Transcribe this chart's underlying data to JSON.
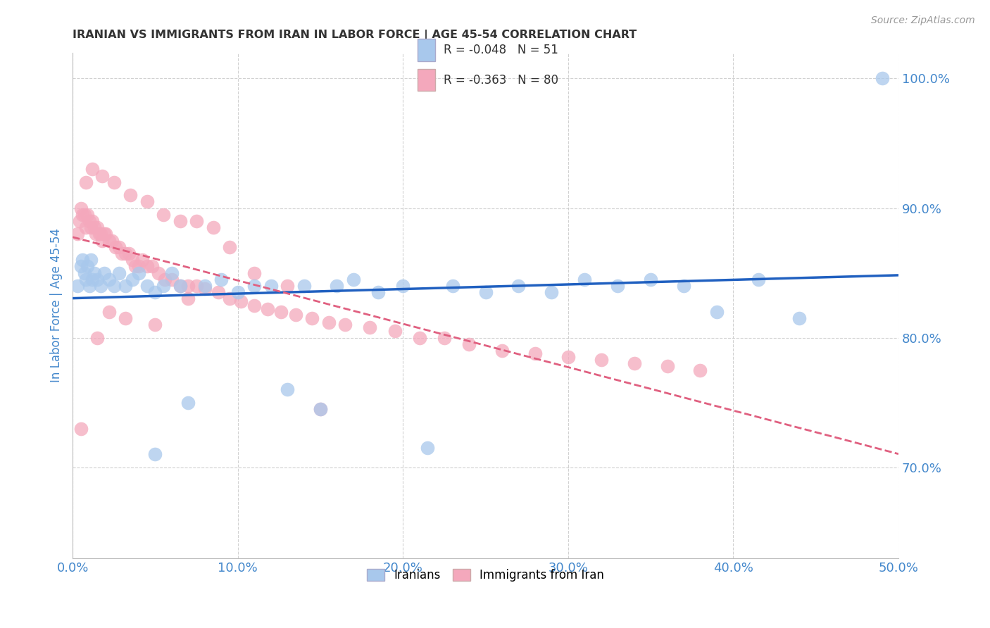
{
  "title": "IRANIAN VS IMMIGRANTS FROM IRAN IN LABOR FORCE | AGE 45-54 CORRELATION CHART",
  "source": "Source: ZipAtlas.com",
  "ylabel": "In Labor Force | Age 45-54",
  "xlim": [
    0.0,
    0.5
  ],
  "ylim": [
    0.63,
    1.02
  ],
  "ytick_labels": [
    "70.0%",
    "80.0%",
    "90.0%",
    "100.0%"
  ],
  "ytick_values": [
    0.7,
    0.8,
    0.9,
    1.0
  ],
  "xtick_labels": [
    "0.0%",
    "10.0%",
    "20.0%",
    "30.0%",
    "40.0%",
    "50.0%"
  ],
  "xtick_values": [
    0.0,
    0.1,
    0.2,
    0.3,
    0.4,
    0.5
  ],
  "legend_label1": "Iranians",
  "legend_label2": "Immigrants from Iran",
  "R1": -0.048,
  "N1": 51,
  "R2": -0.363,
  "N2": 80,
  "color1": "#A8C8EC",
  "color2": "#F4A8BC",
  "trendline1_color": "#2060C0",
  "trendline2_color": "#E06080",
  "background_color": "#ffffff",
  "axis_label_color": "#4488CC",
  "grid_color": "#cccccc",
  "iranians_x": [
    0.003,
    0.005,
    0.006,
    0.007,
    0.008,
    0.009,
    0.01,
    0.011,
    0.012,
    0.013,
    0.015,
    0.017,
    0.019,
    0.022,
    0.025,
    0.028,
    0.032,
    0.036,
    0.04,
    0.045,
    0.05,
    0.055,
    0.06,
    0.065,
    0.07,
    0.08,
    0.09,
    0.1,
    0.11,
    0.12,
    0.13,
    0.14,
    0.15,
    0.16,
    0.17,
    0.185,
    0.2,
    0.215,
    0.23,
    0.25,
    0.27,
    0.29,
    0.31,
    0.33,
    0.35,
    0.37,
    0.39,
    0.415,
    0.44,
    0.05,
    0.49
  ],
  "iranians_y": [
    0.84,
    0.855,
    0.86,
    0.85,
    0.845,
    0.855,
    0.84,
    0.86,
    0.845,
    0.85,
    0.845,
    0.84,
    0.85,
    0.845,
    0.84,
    0.85,
    0.84,
    0.845,
    0.85,
    0.84,
    0.835,
    0.84,
    0.85,
    0.84,
    0.75,
    0.84,
    0.845,
    0.835,
    0.84,
    0.84,
    0.76,
    0.84,
    0.745,
    0.84,
    0.845,
    0.835,
    0.84,
    0.715,
    0.84,
    0.835,
    0.84,
    0.835,
    0.845,
    0.84,
    0.845,
    0.84,
    0.82,
    0.845,
    0.815,
    0.71,
    1.0
  ],
  "immigrants_x": [
    0.003,
    0.004,
    0.005,
    0.006,
    0.007,
    0.008,
    0.009,
    0.01,
    0.011,
    0.012,
    0.013,
    0.014,
    0.015,
    0.016,
    0.017,
    0.018,
    0.019,
    0.02,
    0.022,
    0.024,
    0.026,
    0.028,
    0.03,
    0.032,
    0.034,
    0.036,
    0.038,
    0.04,
    0.042,
    0.045,
    0.048,
    0.052,
    0.056,
    0.06,
    0.065,
    0.07,
    0.075,
    0.08,
    0.088,
    0.095,
    0.102,
    0.11,
    0.118,
    0.126,
    0.135,
    0.145,
    0.155,
    0.165,
    0.18,
    0.195,
    0.21,
    0.225,
    0.24,
    0.26,
    0.28,
    0.3,
    0.32,
    0.34,
    0.36,
    0.38,
    0.008,
    0.012,
    0.018,
    0.025,
    0.035,
    0.045,
    0.055,
    0.065,
    0.075,
    0.085,
    0.095,
    0.11,
    0.13,
    0.15,
    0.005,
    0.015,
    0.022,
    0.032,
    0.05,
    0.07
  ],
  "immigrants_y": [
    0.88,
    0.89,
    0.9,
    0.895,
    0.895,
    0.885,
    0.895,
    0.89,
    0.885,
    0.89,
    0.885,
    0.88,
    0.885,
    0.88,
    0.88,
    0.875,
    0.88,
    0.88,
    0.875,
    0.875,
    0.87,
    0.87,
    0.865,
    0.865,
    0.865,
    0.86,
    0.855,
    0.855,
    0.86,
    0.855,
    0.855,
    0.85,
    0.845,
    0.845,
    0.84,
    0.84,
    0.84,
    0.838,
    0.835,
    0.83,
    0.828,
    0.825,
    0.822,
    0.82,
    0.818,
    0.815,
    0.812,
    0.81,
    0.808,
    0.805,
    0.8,
    0.8,
    0.795,
    0.79,
    0.788,
    0.785,
    0.783,
    0.78,
    0.778,
    0.775,
    0.92,
    0.93,
    0.925,
    0.92,
    0.91,
    0.905,
    0.895,
    0.89,
    0.89,
    0.885,
    0.87,
    0.85,
    0.84,
    0.745,
    0.73,
    0.8,
    0.82,
    0.815,
    0.81,
    0.83
  ]
}
